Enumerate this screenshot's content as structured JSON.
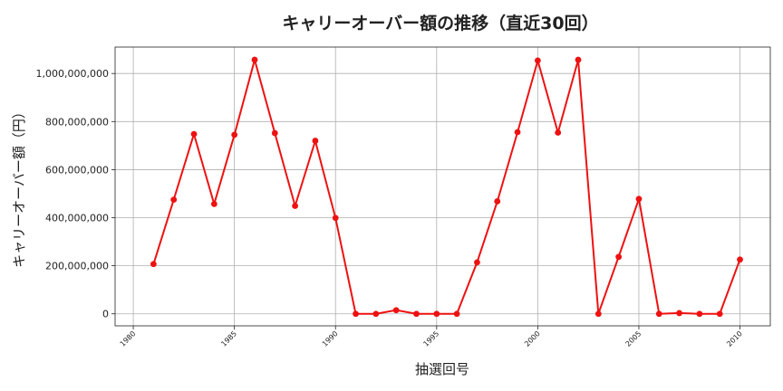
{
  "chart_data": {
    "type": "line",
    "title": "キャリーオーバー額の推移（直近30回）",
    "xlabel": "抽選回号",
    "ylabel": "キャリーオーバー額（円）",
    "xlim": [
      1979.1,
      2011.5
    ],
    "ylim": [
      -50000000,
      1110000000
    ],
    "xticks": [
      1980,
      1985,
      1990,
      1995,
      2000,
      2005,
      2010
    ],
    "yticks": [
      0,
      200000000,
      400000000,
      600000000,
      800000000,
      1000000000
    ],
    "ytick_labels": [
      "0",
      "200,000,000",
      "400,000,000",
      "600,000,000",
      "800,000,000",
      "1,000,000,000"
    ],
    "grid": true,
    "series": [
      {
        "color": "#ee1111",
        "marker": "circle",
        "x": [
          1981,
          1982,
          1983,
          1984,
          1985,
          1986,
          1987,
          1988,
          1989,
          1990,
          1991,
          1992,
          1993,
          1994,
          1995,
          1996,
          1997,
          1998,
          1999,
          2000,
          2001,
          2002,
          2003,
          2004,
          2005,
          2006,
          2007,
          2008,
          2009,
          2010
        ],
        "y": [
          207000000,
          475000000,
          748000000,
          457000000,
          745000000,
          1057000000,
          752000000,
          449000000,
          720000000,
          399000000,
          0,
          0,
          15000000,
          0,
          0,
          0,
          214000000,
          468000000,
          756000000,
          1054000000,
          754000000,
          1057000000,
          0,
          237000000,
          478000000,
          0,
          3000000,
          0,
          0,
          226000000
        ]
      }
    ]
  }
}
